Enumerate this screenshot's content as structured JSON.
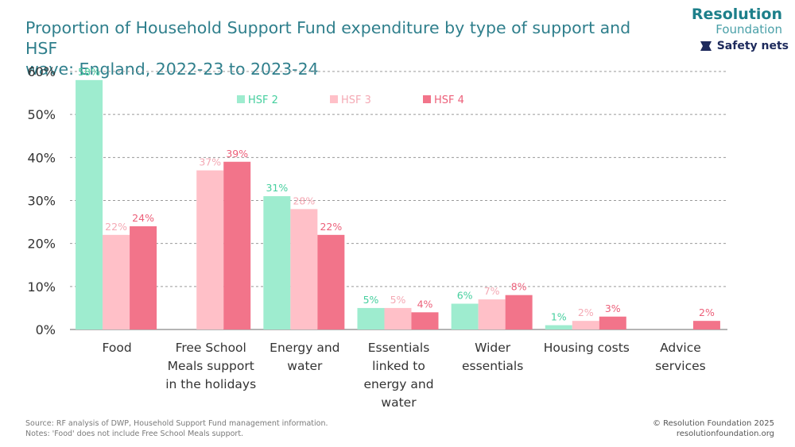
{
  "header": {
    "title_line1": "Proportion of Household Support Fund expenditure by type of support and HSF",
    "title_line2": "wave: England, 2022-23 to 2023-24",
    "brand_name": "Resolution",
    "brand_sub": "Foundation",
    "tag_label": "Safety nets",
    "tag_icon": "safety-net-icon"
  },
  "footer": {
    "source": "Source: RF analysis of DWP, Household Support Fund management information.",
    "notes": "Notes: 'Food' does not include Free School Meals support.",
    "copyright": "© Resolution Foundation 2025",
    "url": "resolutionfoundation.org"
  },
  "chart_data": {
    "type": "bar",
    "ylim": [
      0,
      60
    ],
    "yticks": [
      "0%",
      "10%",
      "20%",
      "30%",
      "40%",
      "50%",
      "60%"
    ],
    "grid": true,
    "legend_position": "top",
    "categories": [
      [
        "Food"
      ],
      [
        "Free School",
        "Meals support",
        "in the holidays"
      ],
      [
        "Energy and",
        "water"
      ],
      [
        "Essentials",
        "linked to",
        "energy and",
        "water"
      ],
      [
        "Wider",
        "essentials"
      ],
      [
        "Housing costs"
      ],
      [
        "Advice",
        "services"
      ]
    ],
    "series": [
      {
        "name": "HSF 2",
        "color": "#9eeccf",
        "label_color": "#45cf9e",
        "values": [
          58,
          null,
          31,
          5,
          6,
          1,
          null
        ],
        "labels": [
          "58%",
          "",
          "31%",
          "5%",
          "6%",
          "1%",
          ""
        ]
      },
      {
        "name": "HSF 3",
        "color": "#ffc0c8",
        "label_color": "#f4a9b4",
        "values": [
          22,
          37,
          28,
          5,
          7,
          2,
          null
        ],
        "labels": [
          "22%",
          "37%",
          "28%",
          "5%",
          "7%",
          "2%",
          ""
        ]
      },
      {
        "name": "HSF 4",
        "color": "#f2748a",
        "label_color": "#ec5f79",
        "values": [
          24,
          39,
          22,
          4,
          8,
          3,
          2
        ],
        "labels": [
          "24%",
          "39%",
          "22%",
          "4%",
          "8%",
          "3%",
          "2%"
        ]
      }
    ]
  }
}
